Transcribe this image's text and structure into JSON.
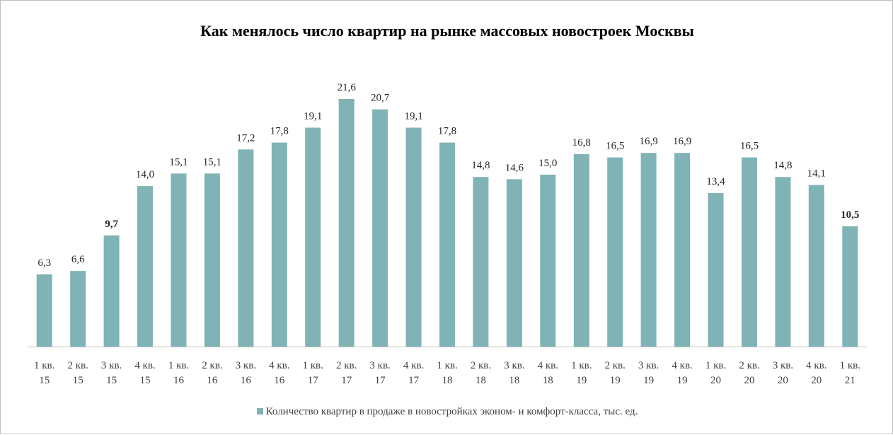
{
  "chart_data": {
    "type": "bar",
    "title": "Как менялось число квартир на рынке массовых новостроек  Москвы",
    "categories": [
      [
        "1 кв.",
        "15"
      ],
      [
        "2 кв.",
        "15"
      ],
      [
        "3 кв.",
        "15"
      ],
      [
        "4 кв.",
        "15"
      ],
      [
        "1 кв.",
        "16"
      ],
      [
        "2 кв.",
        "16"
      ],
      [
        "3 кв.",
        "16"
      ],
      [
        "4 кв.",
        "16"
      ],
      [
        "1 кв.",
        "17"
      ],
      [
        "2 кв.",
        "17"
      ],
      [
        "3 кв.",
        "17"
      ],
      [
        "4 кв.",
        "17"
      ],
      [
        "1 кв.",
        "18"
      ],
      [
        "2 кв.",
        "18"
      ],
      [
        "3 кв.",
        "18"
      ],
      [
        "4 кв.",
        "18"
      ],
      [
        "1 кв.",
        "19"
      ],
      [
        "2 кв.",
        "19"
      ],
      [
        "3 кв.",
        "19"
      ],
      [
        "4 кв.",
        "19"
      ],
      [
        "1 кв.",
        "20"
      ],
      [
        "2 кв.",
        "20"
      ],
      [
        "3 кв.",
        "20"
      ],
      [
        "4 кв.",
        "20"
      ],
      [
        "1 кв.",
        "21"
      ]
    ],
    "series": [
      {
        "name": "Количество квартир в продаже в новостройках эконом- и комфорт-класса, тыс. ед.",
        "color": "#80b3b6",
        "values": [
          6.3,
          6.6,
          9.7,
          14.0,
          15.1,
          15.1,
          17.2,
          17.8,
          19.1,
          21.6,
          20.7,
          19.1,
          17.8,
          14.8,
          14.6,
          15.0,
          16.8,
          16.5,
          16.9,
          16.9,
          13.4,
          16.5,
          14.8,
          14.1,
          10.5
        ],
        "labels": [
          "6,3",
          "6,6",
          "9,7",
          "14,0",
          "15,1",
          "15,1",
          "17,2",
          "17,8",
          "19,1",
          "21,6",
          "20,7",
          "19,1",
          "17,8",
          "14,8",
          "14,6",
          "15,0",
          "16,8",
          "16,5",
          "16,9",
          "16,9",
          "13,4",
          "16,5",
          "14,8",
          "14,1",
          "10,5"
        ],
        "bold_labels": [
          2,
          24
        ]
      }
    ],
    "ylim": [
      0,
      22
    ],
    "grid": false,
    "legend_position": "bottom"
  }
}
